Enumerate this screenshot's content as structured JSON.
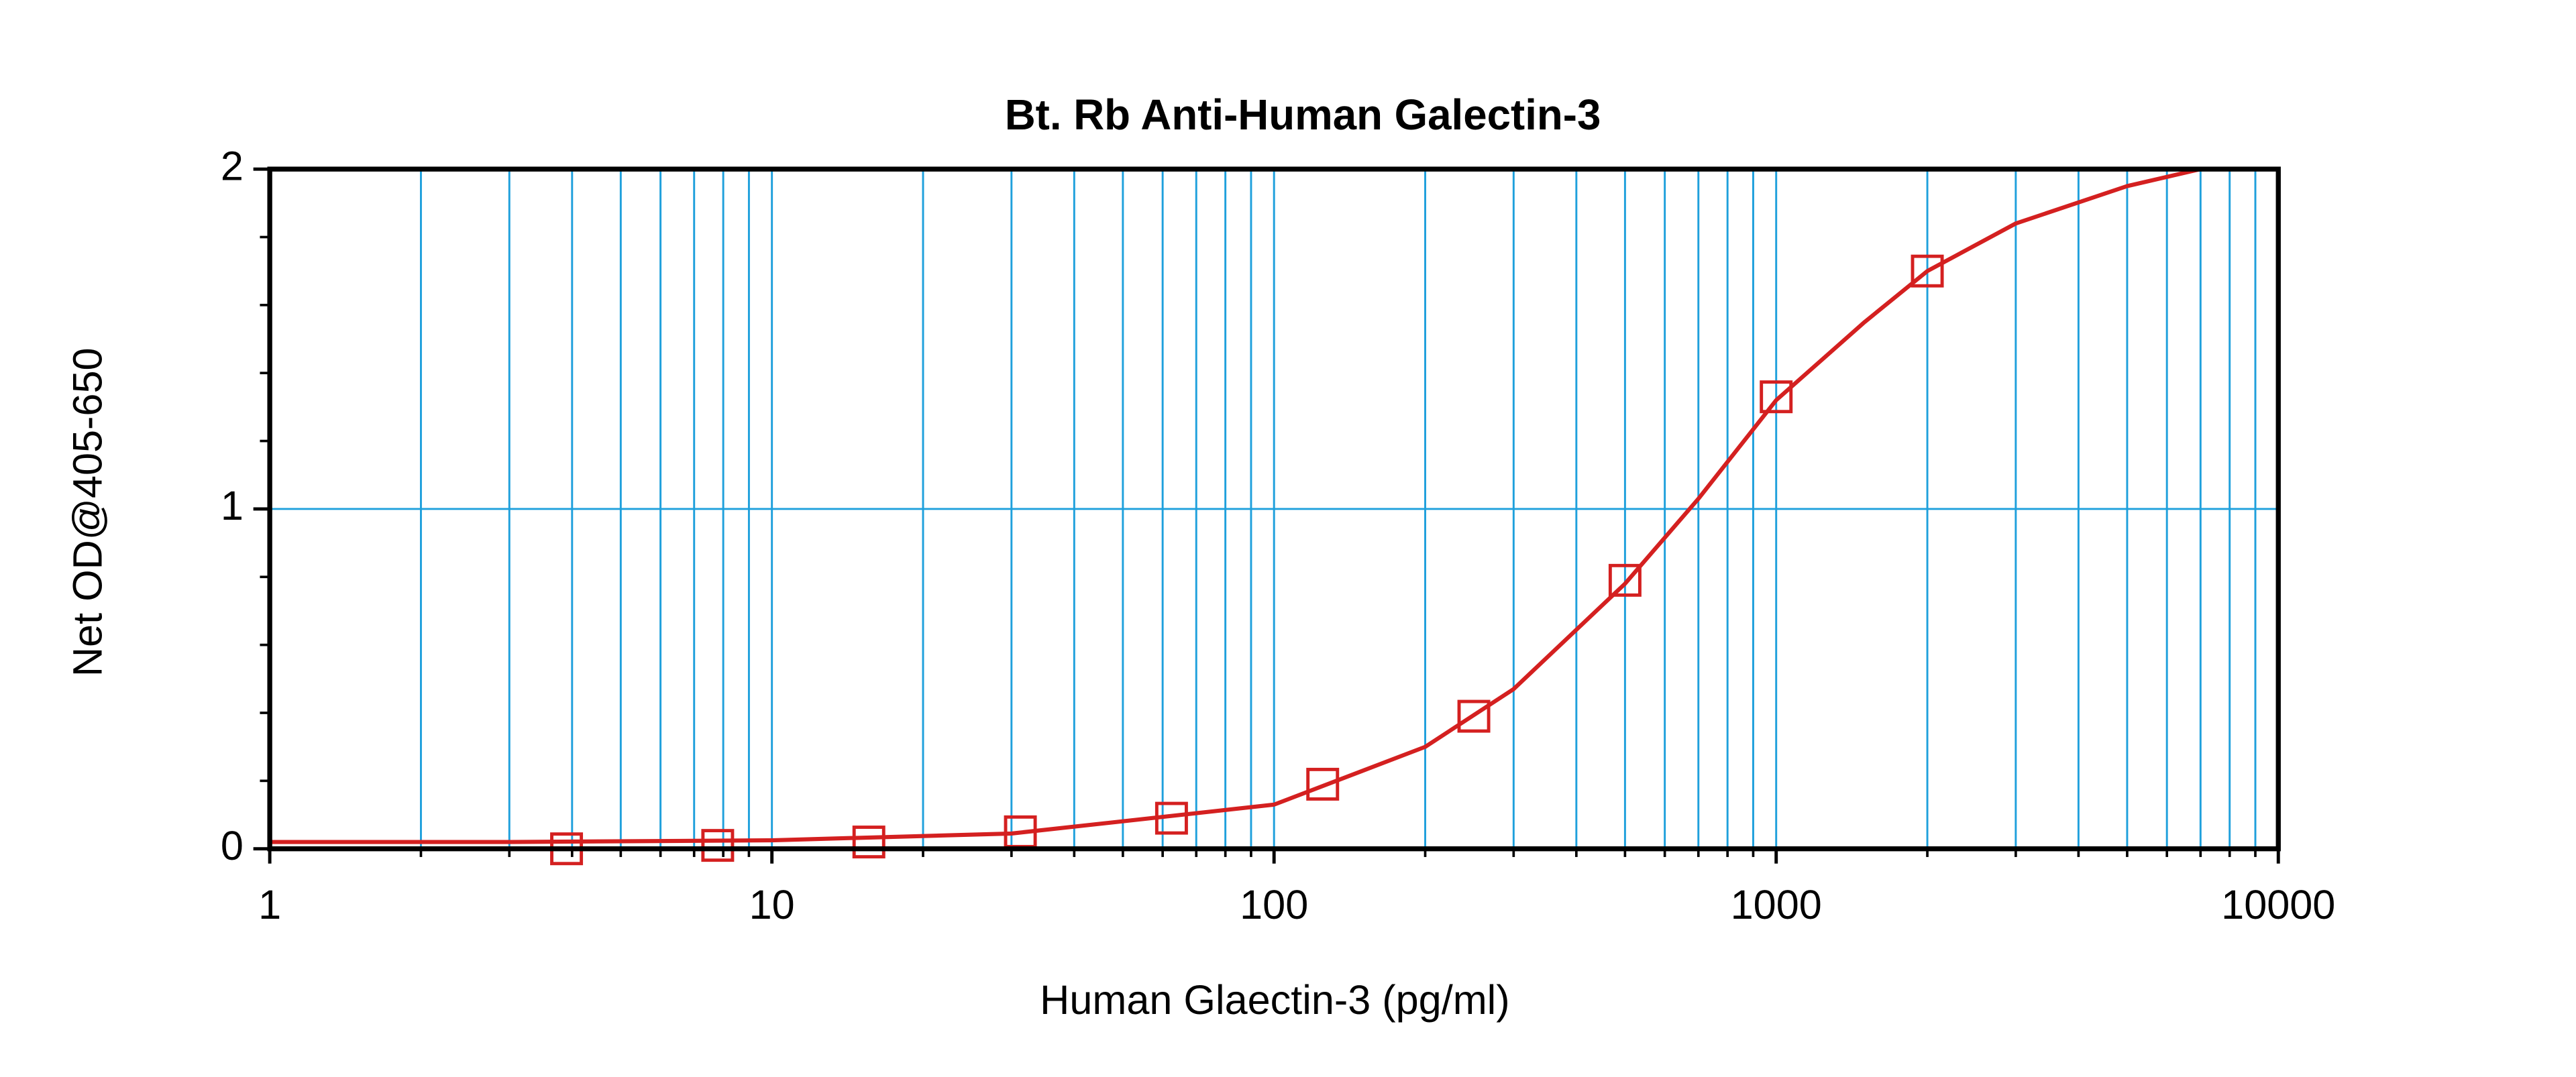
{
  "chart_data": {
    "type": "scatter",
    "title": "Bt. Rb Anti-Human Galectin-3",
    "x_label": "Human Glaectin-3 (pg/ml)",
    "y_label": "Net OD@405-650",
    "x_log": true,
    "xlim": [
      1,
      10000
    ],
    "xticks": [
      1,
      10,
      100,
      1000,
      10000
    ],
    "xminorticks": [
      2,
      3,
      4,
      5,
      6,
      7,
      8,
      9,
      20,
      30,
      40,
      50,
      60,
      70,
      80,
      90,
      200,
      300,
      400,
      500,
      600,
      700,
      800,
      900,
      2000,
      3000,
      4000,
      5000,
      6000,
      7000,
      8000,
      9000
    ],
    "ylim": [
      0,
      2
    ],
    "yticks": [
      0,
      1,
      2
    ],
    "yminorticks": [
      0.2,
      0.4,
      0.6,
      0.8,
      1.2,
      1.4,
      1.6,
      1.8
    ],
    "grid": true,
    "grid_color": "#1fa0dc",
    "series": [
      {
        "marker": "square",
        "color": "#d42020",
        "x": [
          3.9,
          7.8,
          15.6,
          31.25,
          62.5,
          125,
          250,
          500,
          1000,
          2000
        ],
        "values": [
          0.0,
          0.01,
          0.02,
          0.05,
          0.09,
          0.19,
          0.39,
          0.79,
          1.33,
          1.7
        ]
      },
      {
        "marker": "line",
        "color": "#d42020",
        "x": [
          1,
          3,
          10,
          30,
          100,
          200,
          300,
          500,
          700,
          1000,
          1500,
          2000,
          3000,
          5000,
          7000
        ],
        "values": [
          0.02,
          0.02,
          0.025,
          0.045,
          0.13,
          0.3,
          0.47,
          0.78,
          1.03,
          1.32,
          1.55,
          1.7,
          1.84,
          1.95,
          2.0
        ]
      }
    ]
  }
}
